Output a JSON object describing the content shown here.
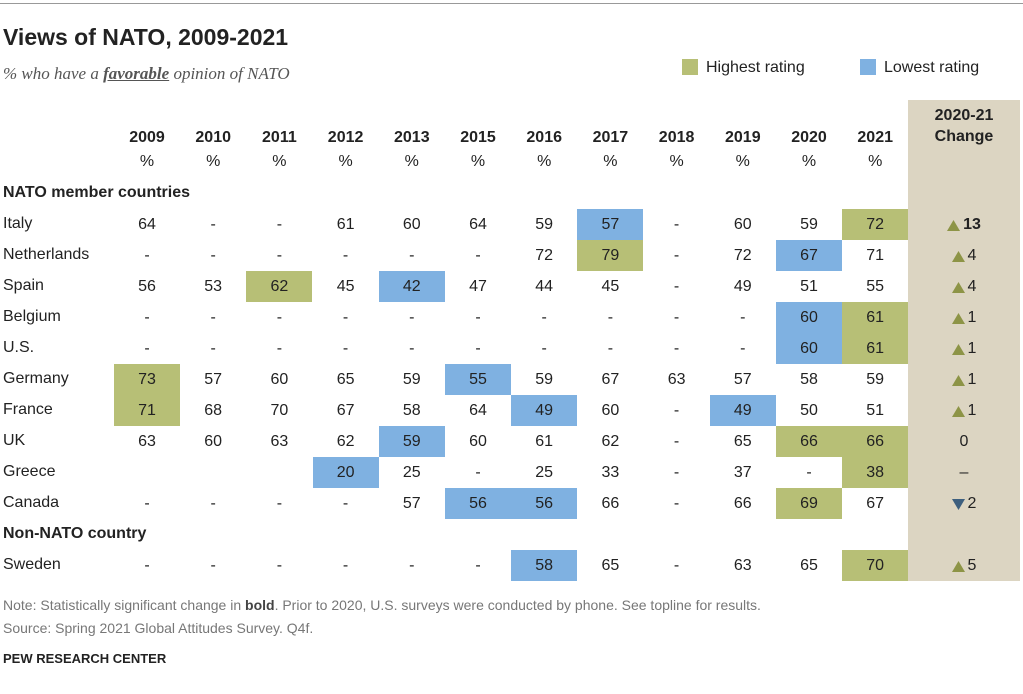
{
  "header": {
    "title": "Views of NATO, 2009-2021",
    "subtitle": [
      "% who have a ",
      "favorable",
      " opinion of NATO"
    ]
  },
  "legend": [
    {
      "label": "Highest rating",
      "color": "#b7bf76"
    },
    {
      "label": "Lowest rating",
      "color": "#7fb1e1"
    }
  ],
  "table": {
    "years": [
      2009,
      2010,
      2011,
      2012,
      2013,
      2015,
      2016,
      2017,
      2018,
      2019,
      2020,
      2021
    ],
    "unit": "%",
    "change_header": [
      "2020-21",
      "Change"
    ],
    "change_color": "#dcd5c2",
    "up_color": "#8d9446",
    "down_color": "#3d5f7e",
    "groups": [
      {
        "label": "NATO member countries",
        "rows": [
          {
            "country": "Italy",
            "values": [
              64,
              "-",
              "-",
              61,
              60,
              64,
              59,
              57,
              "-",
              60,
              59,
              72
            ],
            "highest": [
              11
            ],
            "lowest": [
              7
            ],
            "change": {
              "direction": "up",
              "value": 13,
              "bold": true
            }
          },
          {
            "country": "Netherlands",
            "values": [
              "-",
              "-",
              "-",
              "-",
              "-",
              "-",
              72,
              79,
              "-",
              72,
              67,
              71
            ],
            "highest": [
              7
            ],
            "lowest": [
              10
            ],
            "change": {
              "direction": "up",
              "value": 4
            }
          },
          {
            "country": "Spain",
            "values": [
              56,
              53,
              62,
              45,
              42,
              47,
              44,
              45,
              "-",
              49,
              51,
              55
            ],
            "highest": [
              2
            ],
            "lowest": [
              4
            ],
            "change": {
              "direction": "up",
              "value": 4
            }
          },
          {
            "country": "Belgium",
            "values": [
              "-",
              "-",
              "-",
              "-",
              "-",
              "-",
              "-",
              "-",
              "-",
              "-",
              60,
              61
            ],
            "highest": [
              11
            ],
            "lowest": [
              10
            ],
            "change": {
              "direction": "up",
              "value": 1
            }
          },
          {
            "country": "U.S.",
            "values": [
              "-",
              "-",
              "-",
              "-",
              "-",
              "-",
              "-",
              "-",
              "-",
              "-",
              60,
              61
            ],
            "highest": [
              11
            ],
            "lowest": [
              10
            ],
            "change": {
              "direction": "up",
              "value": 1
            }
          },
          {
            "country": "Germany",
            "values": [
              73,
              57,
              60,
              65,
              59,
              55,
              59,
              67,
              63,
              57,
              58,
              59
            ],
            "highest": [
              0
            ],
            "lowest": [
              5
            ],
            "change": {
              "direction": "up",
              "value": 1
            }
          },
          {
            "country": "France",
            "values": [
              71,
              68,
              70,
              67,
              58,
              64,
              49,
              60,
              "-",
              49,
              50,
              51
            ],
            "highest": [
              0
            ],
            "lowest": [
              6,
              9
            ],
            "change": {
              "direction": "up",
              "value": 1
            }
          },
          {
            "country": "UK",
            "values": [
              63,
              60,
              63,
              62,
              59,
              60,
              61,
              62,
              "-",
              65,
              66,
              66
            ],
            "highest": [
              10,
              11
            ],
            "lowest": [
              4
            ],
            "change": {
              "value": 0
            }
          },
          {
            "country": "Greece",
            "values": [
              null,
              null,
              null,
              20,
              25,
              "-",
              25,
              33,
              "-",
              37,
              "-",
              38
            ],
            "highest": [
              11
            ],
            "lowest": [
              3
            ],
            "change": {
              "value": "–"
            }
          },
          {
            "country": "Canada",
            "values": [
              "-",
              "-",
              "-",
              "-",
              57,
              56,
              56,
              66,
              "-",
              66,
              69,
              67
            ],
            "highest": [
              10
            ],
            "lowest": [
              5,
              6
            ],
            "change": {
              "direction": "down",
              "value": 2
            }
          }
        ]
      },
      {
        "label": "Non-NATO country",
        "rows": [
          {
            "country": "Sweden",
            "values": [
              "-",
              "-",
              "-",
              "-",
              "-",
              "-",
              58,
              65,
              "-",
              63,
              65,
              70
            ],
            "highest": [
              11
            ],
            "lowest": [
              6
            ],
            "change": {
              "direction": "up",
              "value": 5
            }
          }
        ]
      }
    ]
  },
  "notes": {
    "note": [
      "Note: Statistically significant change in ",
      "bold",
      ". Prior to 2020, U.S. surveys were conducted by phone. See topline for results."
    ],
    "source": "Source: Spring 2021 Global Attitudes Survey. Q4f.",
    "credit": "PEW RESEARCH CENTER"
  }
}
